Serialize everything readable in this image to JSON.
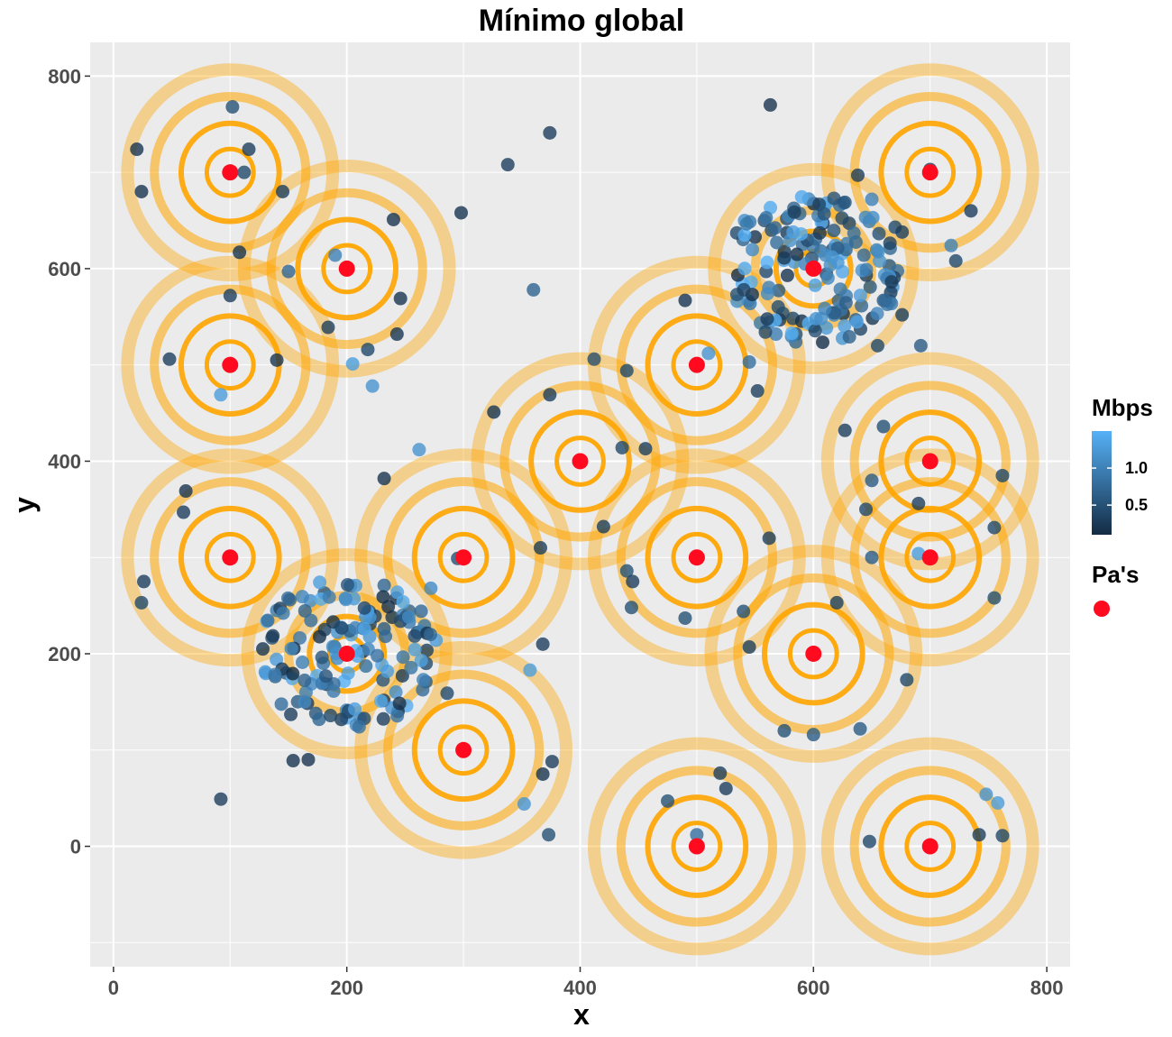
{
  "chart_data": {
    "type": "scatter",
    "title": "Mínimo global",
    "xlabel": "x",
    "ylabel": "y",
    "xlim": [
      -20,
      820
    ],
    "ylim": [
      -125,
      835
    ],
    "x_ticks": [
      0,
      200,
      400,
      600,
      800
    ],
    "y_ticks": [
      0,
      200,
      400,
      600,
      800
    ],
    "x_tick_labels": [
      "0",
      "200",
      "400",
      "600",
      "800"
    ],
    "y_tick_labels": [
      "0",
      "200",
      "400",
      "600",
      "800"
    ],
    "grid": true,
    "background": "#ebebeb",
    "legend_placement": "right",
    "legends": {
      "mbps": {
        "title": "Mbps",
        "type": "gradient",
        "low_color": "#132b43",
        "high_color": "#56b1f7",
        "range": [
          0.1,
          1.5
        ],
        "breaks": [
          0.5,
          1.0
        ],
        "break_labels": [
          "0.5",
          "1.0"
        ]
      },
      "pas": {
        "title": "Pa's",
        "color": "#ff0a1e"
      }
    },
    "access_points": {
      "name": "Pa's",
      "color": "#ff0a1e",
      "points": [
        {
          "x": 100,
          "y": 700
        },
        {
          "x": 200,
          "y": 600
        },
        {
          "x": 100,
          "y": 500
        },
        {
          "x": 100,
          "y": 300
        },
        {
          "x": 200,
          "y": 200
        },
        {
          "x": 300,
          "y": 300
        },
        {
          "x": 300,
          "y": 100
        },
        {
          "x": 400,
          "y": 400
        },
        {
          "x": 500,
          "y": 500
        },
        {
          "x": 500,
          "y": 300
        },
        {
          "x": 500,
          "y": 0
        },
        {
          "x": 600,
          "y": 600
        },
        {
          "x": 600,
          "y": 200
        },
        {
          "x": 700,
          "y": 700
        },
        {
          "x": 700,
          "y": 400
        },
        {
          "x": 700,
          "y": 300
        },
        {
          "x": 700,
          "y": 0
        }
      ]
    },
    "coverage_rings": {
      "color": "#ffa500",
      "centers": [
        {
          "x": 100,
          "y": 700,
          "radii": [
            20,
            42,
            65,
            88
          ]
        },
        {
          "x": 200,
          "y": 600,
          "radii": [
            20,
            42,
            65,
            88
          ]
        },
        {
          "x": 100,
          "y": 500,
          "radii": [
            20,
            42,
            65,
            88
          ]
        },
        {
          "x": 100,
          "y": 300,
          "radii": [
            20,
            42,
            65,
            88
          ]
        },
        {
          "x": 200,
          "y": 200,
          "radii": [
            15,
            32,
            50,
            85
          ]
        },
        {
          "x": 300,
          "y": 300,
          "radii": [
            20,
            42,
            65,
            88
          ]
        },
        {
          "x": 300,
          "y": 100,
          "radii": [
            20,
            42,
            65,
            88
          ]
        },
        {
          "x": 400,
          "y": 400,
          "radii": [
            20,
            42,
            65,
            88
          ]
        },
        {
          "x": 500,
          "y": 500,
          "radii": [
            20,
            42,
            65,
            88
          ]
        },
        {
          "x": 500,
          "y": 300,
          "radii": [
            20,
            42,
            65,
            88
          ]
        },
        {
          "x": 500,
          "y": 0,
          "radii": [
            20,
            42,
            65,
            88
          ]
        },
        {
          "x": 600,
          "y": 600,
          "radii": [
            15,
            32,
            50,
            85
          ]
        },
        {
          "x": 600,
          "y": 200,
          "radii": [
            20,
            42,
            65,
            88
          ]
        },
        {
          "x": 700,
          "y": 700,
          "radii": [
            20,
            42,
            65,
            88
          ]
        },
        {
          "x": 700,
          "y": 400,
          "radii": [
            20,
            42,
            65,
            88
          ]
        },
        {
          "x": 700,
          "y": 300,
          "radii": [
            20,
            42,
            65,
            88
          ]
        },
        {
          "x": 700,
          "y": 0,
          "radii": [
            20,
            42,
            65,
            88
          ]
        }
      ]
    },
    "users": {
      "name": "Mbps",
      "points": [
        {
          "x": 20,
          "y": 724,
          "v": 0.2
        },
        {
          "x": 24,
          "y": 680,
          "v": 0.2
        },
        {
          "x": 102,
          "y": 768,
          "v": 0.5
        },
        {
          "x": 116,
          "y": 724,
          "v": 0.3
        },
        {
          "x": 112,
          "y": 700,
          "v": 0.4
        },
        {
          "x": 145,
          "y": 680,
          "v": 0.3
        },
        {
          "x": 108,
          "y": 617,
          "v": 0.2
        },
        {
          "x": 100,
          "y": 572,
          "v": 0.3
        },
        {
          "x": 150,
          "y": 597,
          "v": 0.7
        },
        {
          "x": 48,
          "y": 506,
          "v": 0.3
        },
        {
          "x": 140,
          "y": 505,
          "v": 0.2
        },
        {
          "x": 92,
          "y": 469,
          "v": 1.3
        },
        {
          "x": 190,
          "y": 614,
          "v": 1.0
        },
        {
          "x": 205,
          "y": 501,
          "v": 1.3
        },
        {
          "x": 222,
          "y": 478,
          "v": 1.2
        },
        {
          "x": 218,
          "y": 516,
          "v": 0.4
        },
        {
          "x": 240,
          "y": 651,
          "v": 0.2
        },
        {
          "x": 246,
          "y": 569,
          "v": 0.2
        },
        {
          "x": 243,
          "y": 532,
          "v": 0.2
        },
        {
          "x": 184,
          "y": 539,
          "v": 0.3
        },
        {
          "x": 298,
          "y": 658,
          "v": 0.2
        },
        {
          "x": 338,
          "y": 708,
          "v": 0.3
        },
        {
          "x": 374,
          "y": 741,
          "v": 0.3
        },
        {
          "x": 360,
          "y": 578,
          "v": 0.7
        },
        {
          "x": 262,
          "y": 412,
          "v": 1.2
        },
        {
          "x": 232,
          "y": 382,
          "v": 0.2
        },
        {
          "x": 62,
          "y": 369,
          "v": 0.2
        },
        {
          "x": 60,
          "y": 347,
          "v": 0.3
        },
        {
          "x": 26,
          "y": 275,
          "v": 0.3
        },
        {
          "x": 24,
          "y": 253,
          "v": 0.4
        },
        {
          "x": 140,
          "y": 245,
          "v": 0.9
        },
        {
          "x": 152,
          "y": 137,
          "v": 0.3
        },
        {
          "x": 154,
          "y": 89,
          "v": 0.2
        },
        {
          "x": 167,
          "y": 90,
          "v": 0.2
        },
        {
          "x": 92,
          "y": 49,
          "v": 0.3
        },
        {
          "x": 128,
          "y": 205,
          "v": 0.2
        },
        {
          "x": 272,
          "y": 268,
          "v": 1.1
        },
        {
          "x": 268,
          "y": 190,
          "v": 0.4
        },
        {
          "x": 286,
          "y": 159,
          "v": 0.4
        },
        {
          "x": 295,
          "y": 299,
          "v": 0.5
        },
        {
          "x": 366,
          "y": 310,
          "v": 0.3
        },
        {
          "x": 368,
          "y": 210,
          "v": 0.3
        },
        {
          "x": 357,
          "y": 183,
          "v": 1.3
        },
        {
          "x": 376,
          "y": 88,
          "v": 0.3
        },
        {
          "x": 368,
          "y": 75,
          "v": 0.2
        },
        {
          "x": 352,
          "y": 44,
          "v": 1.2
        },
        {
          "x": 373,
          "y": 12,
          "v": 0.5
        },
        {
          "x": 326,
          "y": 451,
          "v": 0.2
        },
        {
          "x": 374,
          "y": 469,
          "v": 0.3
        },
        {
          "x": 436,
          "y": 414,
          "v": 0.4
        },
        {
          "x": 456,
          "y": 413,
          "v": 0.3
        },
        {
          "x": 420,
          "y": 332,
          "v": 0.3
        },
        {
          "x": 440,
          "y": 286,
          "v": 0.5
        },
        {
          "x": 445,
          "y": 275,
          "v": 0.3
        },
        {
          "x": 444,
          "y": 248,
          "v": 0.5
        },
        {
          "x": 490,
          "y": 237,
          "v": 0.5
        },
        {
          "x": 412,
          "y": 506,
          "v": 0.5
        },
        {
          "x": 440,
          "y": 494,
          "v": 0.4
        },
        {
          "x": 490,
          "y": 567,
          "v": 0.2
        },
        {
          "x": 510,
          "y": 512,
          "v": 1.2
        },
        {
          "x": 545,
          "y": 503,
          "v": 0.8
        },
        {
          "x": 552,
          "y": 473,
          "v": 0.3
        },
        {
          "x": 562,
          "y": 320,
          "v": 0.3
        },
        {
          "x": 540,
          "y": 244,
          "v": 0.5
        },
        {
          "x": 545,
          "y": 207,
          "v": 0.3
        },
        {
          "x": 563,
          "y": 770,
          "v": 0.2
        },
        {
          "x": 575,
          "y": 120,
          "v": 0.5
        },
        {
          "x": 600,
          "y": 116,
          "v": 0.6
        },
        {
          "x": 640,
          "y": 122,
          "v": 0.6
        },
        {
          "x": 620,
          "y": 253,
          "v": 0.3
        },
        {
          "x": 680,
          "y": 173,
          "v": 0.4
        },
        {
          "x": 475,
          "y": 47,
          "v": 0.5
        },
        {
          "x": 520,
          "y": 76,
          "v": 0.3
        },
        {
          "x": 525,
          "y": 60,
          "v": 0.3
        },
        {
          "x": 500,
          "y": 12,
          "v": 0.8
        },
        {
          "x": 648,
          "y": 5,
          "v": 0.4
        },
        {
          "x": 638,
          "y": 697,
          "v": 0.3
        },
        {
          "x": 650,
          "y": 672,
          "v": 1.0
        },
        {
          "x": 670,
          "y": 643,
          "v": 0.4
        },
        {
          "x": 676,
          "y": 638,
          "v": 0.3
        },
        {
          "x": 655,
          "y": 520,
          "v": 0.4
        },
        {
          "x": 676,
          "y": 552,
          "v": 0.3
        },
        {
          "x": 692,
          "y": 520,
          "v": 0.6
        },
        {
          "x": 700,
          "y": 703,
          "v": 0.3
        },
        {
          "x": 735,
          "y": 660,
          "v": 0.3
        },
        {
          "x": 718,
          "y": 624,
          "v": 1.0
        },
        {
          "x": 722,
          "y": 608,
          "v": 0.4
        },
        {
          "x": 627,
          "y": 432,
          "v": 0.3
        },
        {
          "x": 660,
          "y": 436,
          "v": 0.5
        },
        {
          "x": 650,
          "y": 380,
          "v": 0.6
        },
        {
          "x": 645,
          "y": 350,
          "v": 0.4
        },
        {
          "x": 690,
          "y": 356,
          "v": 0.3
        },
        {
          "x": 650,
          "y": 300,
          "v": 0.6
        },
        {
          "x": 690,
          "y": 304,
          "v": 1.3
        },
        {
          "x": 762,
          "y": 385,
          "v": 0.4
        },
        {
          "x": 755,
          "y": 331,
          "v": 0.4
        },
        {
          "x": 755,
          "y": 258,
          "v": 0.5
        },
        {
          "x": 748,
          "y": 54,
          "v": 1.2
        },
        {
          "x": 758,
          "y": 45,
          "v": 1.3
        },
        {
          "x": 742,
          "y": 12,
          "v": 0.3
        },
        {
          "x": 762,
          "y": 11,
          "v": 0.4
        },
        {
          "x": 585,
          "y": 532,
          "v": 0.5
        },
        {
          "x": 600,
          "y": 540,
          "v": 0.3
        },
        {
          "x": 665,
          "y": 603,
          "v": 0.6
        },
        {
          "x": 668,
          "y": 581,
          "v": 1.2
        },
        {
          "x": 660,
          "y": 567,
          "v": 0.6
        }
      ],
      "clusters": [
        {
          "cx": 200,
          "cy": 200,
          "n": 140,
          "max_r": 78,
          "seed": 17
        },
        {
          "cx": 600,
          "cy": 600,
          "n": 150,
          "max_r": 78,
          "seed": 42
        }
      ]
    }
  }
}
